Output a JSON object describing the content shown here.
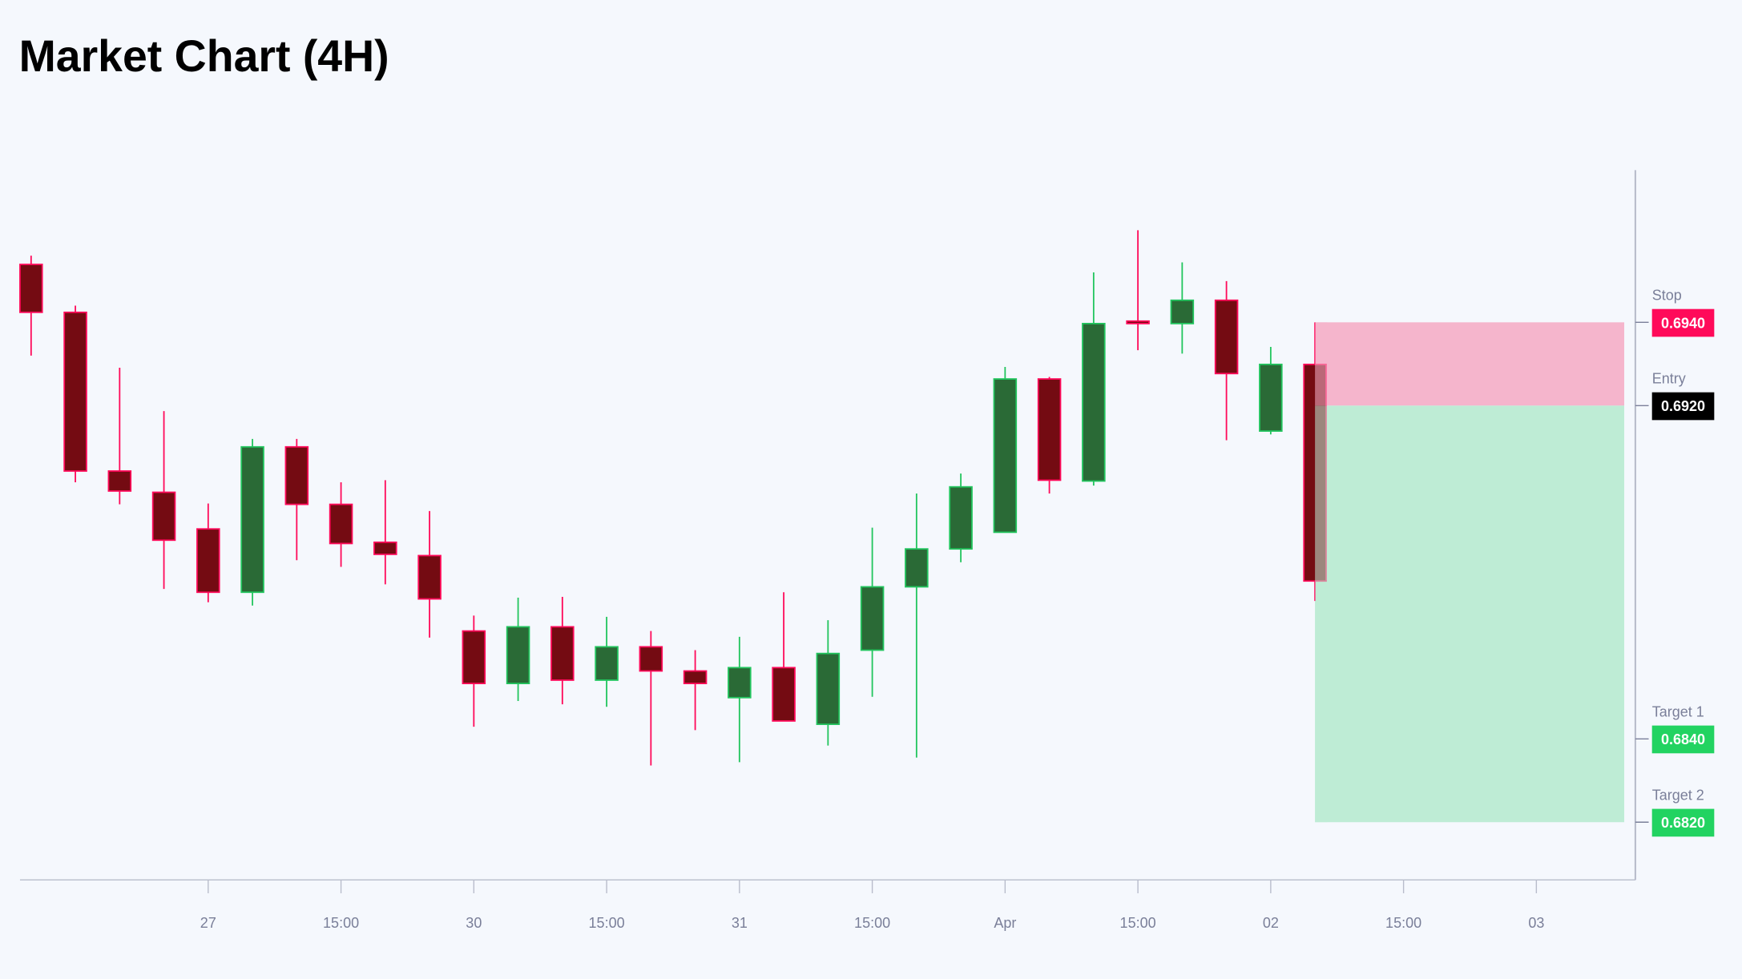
{
  "title": "Market Chart (4H)",
  "chart_data": {
    "type": "candlestick",
    "title": "Market Chart (4H)",
    "interval": "4H",
    "grid": false,
    "x_tick_labels": [
      "27",
      "15:00",
      "30",
      "15:00",
      "31",
      "15:00",
      "Apr",
      "15:00",
      "02",
      "15:00",
      "03"
    ],
    "x_tick_candle_index": [
      4,
      7,
      10,
      13,
      16,
      19,
      22,
      25,
      28,
      31,
      34
    ],
    "ylim": [
      0.6806,
      0.6976
    ],
    "candles": [
      {
        "o": 0.69539,
        "h": 0.6956,
        "l": 0.6932,
        "c": 0.69424
      },
      {
        "o": 0.69424,
        "h": 0.6944,
        "l": 0.69016,
        "c": 0.69043
      },
      {
        "o": 0.69043,
        "h": 0.69291,
        "l": 0.68963,
        "c": 0.68995
      },
      {
        "o": 0.68992,
        "h": 0.69187,
        "l": 0.6876,
        "c": 0.68877
      },
      {
        "o": 0.68904,
        "h": 0.68965,
        "l": 0.68728,
        "c": 0.68752
      },
      {
        "o": 0.68752,
        "h": 0.6912,
        "l": 0.6872,
        "c": 0.69101
      },
      {
        "o": 0.69101,
        "h": 0.6912,
        "l": 0.68829,
        "c": 0.68963
      },
      {
        "o": 0.68963,
        "h": 0.69016,
        "l": 0.68813,
        "c": 0.68869
      },
      {
        "o": 0.68872,
        "h": 0.69021,
        "l": 0.68771,
        "c": 0.68843
      },
      {
        "o": 0.6884,
        "h": 0.68947,
        "l": 0.68643,
        "c": 0.68736
      },
      {
        "o": 0.68659,
        "h": 0.68696,
        "l": 0.68429,
        "c": 0.68533
      },
      {
        "o": 0.68533,
        "h": 0.68739,
        "l": 0.68491,
        "c": 0.68669
      },
      {
        "o": 0.68669,
        "h": 0.68741,
        "l": 0.68483,
        "c": 0.68541
      },
      {
        "o": 0.68541,
        "h": 0.68693,
        "l": 0.68477,
        "c": 0.68621
      },
      {
        "o": 0.68621,
        "h": 0.68659,
        "l": 0.68336,
        "c": 0.68563
      },
      {
        "o": 0.68563,
        "h": 0.68613,
        "l": 0.68421,
        "c": 0.68533
      },
      {
        "o": 0.68499,
        "h": 0.68645,
        "l": 0.68344,
        "c": 0.68571
      },
      {
        "o": 0.68571,
        "h": 0.68752,
        "l": 0.68443,
        "c": 0.68443
      },
      {
        "o": 0.68435,
        "h": 0.68685,
        "l": 0.68384,
        "c": 0.68605
      },
      {
        "o": 0.68613,
        "h": 0.68907,
        "l": 0.68501,
        "c": 0.68765
      },
      {
        "o": 0.68765,
        "h": 0.68989,
        "l": 0.68355,
        "c": 0.68856
      },
      {
        "o": 0.68856,
        "h": 0.69037,
        "l": 0.68824,
        "c": 0.69005
      },
      {
        "o": 0.68896,
        "h": 0.69293,
        "l": 0.68896,
        "c": 0.69264
      },
      {
        "o": 0.69264,
        "h": 0.69269,
        "l": 0.68989,
        "c": 0.69021
      },
      {
        "o": 0.69019,
        "h": 0.6952,
        "l": 0.69008,
        "c": 0.69397
      },
      {
        "o": 0.69403,
        "h": 0.69621,
        "l": 0.69333,
        "c": 0.69397
      },
      {
        "o": 0.69397,
        "h": 0.69544,
        "l": 0.69325,
        "c": 0.69453
      },
      {
        "o": 0.69453,
        "h": 0.69499,
        "l": 0.69117,
        "c": 0.69277
      },
      {
        "o": 0.69139,
        "h": 0.69341,
        "l": 0.69131,
        "c": 0.69299
      },
      {
        "o": 0.69299,
        "h": 0.694,
        "l": 0.68731,
        "c": 0.68779
      }
    ],
    "position": {
      "side": "long",
      "start_candle_index": 29,
      "end_candle_index": 36,
      "risk_zone": [
        0.692,
        0.694
      ],
      "reward_zone": [
        0.682,
        0.692
      ]
    },
    "levels": [
      {
        "name": "Stop",
        "value": "0.6940",
        "price": 0.694,
        "color": "#ff0a5a"
      },
      {
        "name": "Entry",
        "value": "0.6920",
        "price": 0.692,
        "color": "#000000"
      },
      {
        "name": "Target 1",
        "value": "0.6840",
        "price": 0.684,
        "color": "#22d361"
      },
      {
        "name": "Target 2",
        "value": "0.6820",
        "price": 0.682,
        "color": "#22d361"
      }
    ],
    "colors": {
      "up_fill": "#2a6a36",
      "up_border": "#22c55e",
      "down_fill": "#740b12",
      "down_border": "#ff0a5a",
      "risk_zone": "#f5b5cc",
      "reward_zone": "#beecd5",
      "axis": "#b8bccb",
      "text": "#7a7f99"
    }
  }
}
